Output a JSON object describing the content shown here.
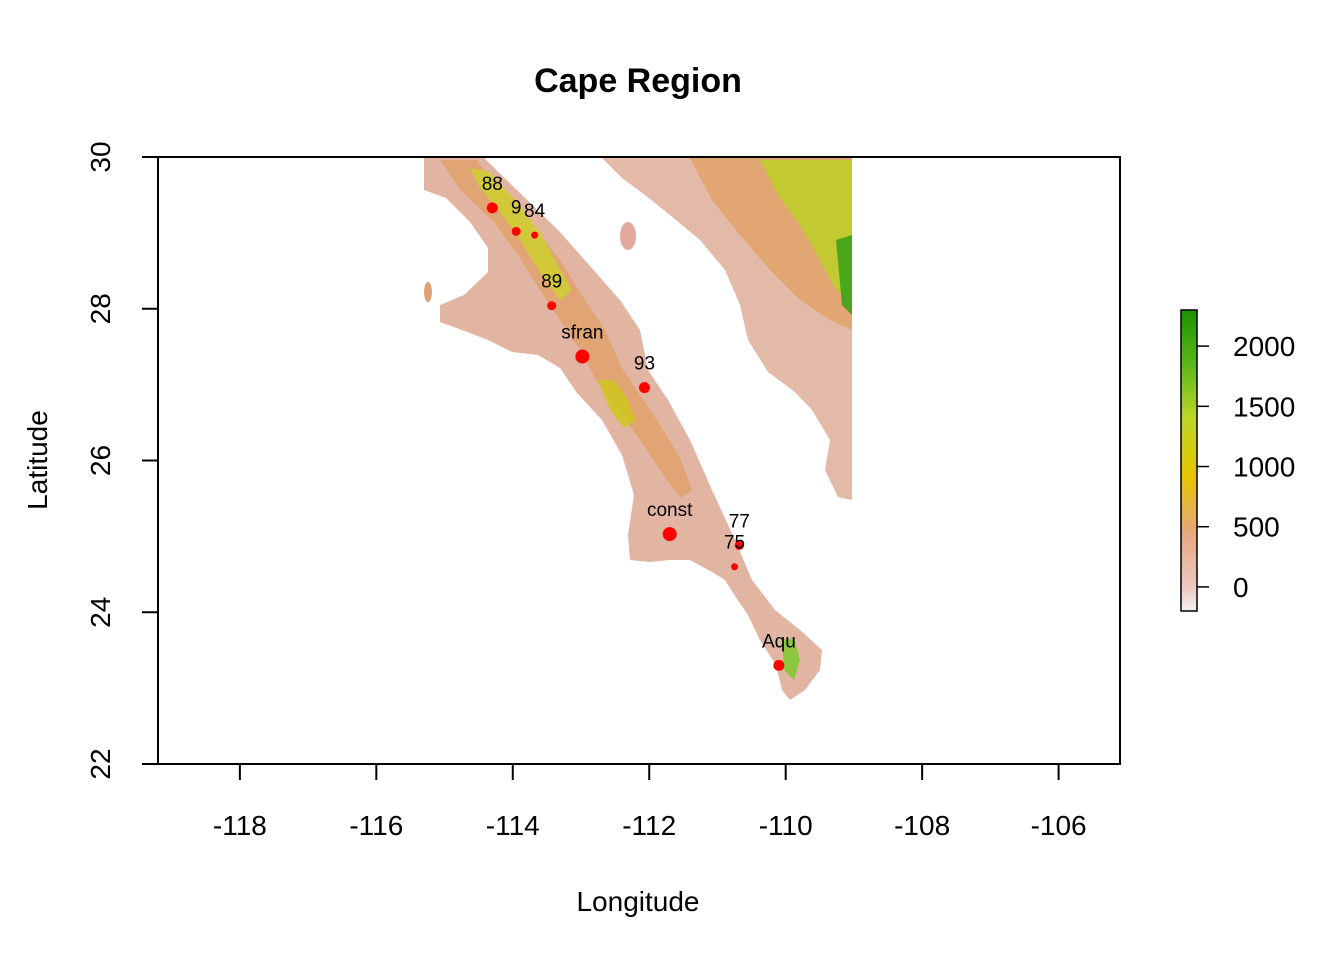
{
  "chart_data": {
    "type": "map",
    "title": "Cape Region",
    "xlabel": "Longitude",
    "ylabel": "Latitude",
    "xlim": [
      -119.2,
      -105.1
    ],
    "ylim": [
      22,
      30
    ],
    "x_ticks": [
      "-118",
      "-116",
      "-114",
      "-112",
      "-110",
      "-108",
      "-106"
    ],
    "y_ticks": [
      "22",
      "24",
      "26",
      "28",
      "30"
    ],
    "raster_extent_lon": [
      -115.3,
      -109.0
    ],
    "legend": {
      "range": [
        -200,
        2300
      ],
      "ticks": [
        "0",
        "500",
        "1000",
        "1500",
        "2000"
      ],
      "tick_values": [
        0,
        500,
        1000,
        1500,
        2000
      ],
      "colors": [
        "#f2f2f2",
        "#e6b6a4",
        "#e8a46a",
        "#e8c800",
        "#9fd020",
        "#1a9900"
      ]
    },
    "sites": [
      {
        "label": "88",
        "lon": -114.3,
        "lat": 29.33,
        "size": "medium"
      },
      {
        "label": "9",
        "lon": -113.95,
        "lat": 29.02,
        "size": "small"
      },
      {
        "label": "84",
        "lon": -113.68,
        "lat": 28.97,
        "size": "tiny"
      },
      {
        "label": "89",
        "lon": -113.43,
        "lat": 28.04,
        "size": "small"
      },
      {
        "label": "sfran",
        "lon": -112.98,
        "lat": 27.37,
        "size": "large"
      },
      {
        "label": "93",
        "lon": -112.07,
        "lat": 26.96,
        "size": "medium"
      },
      {
        "label": "const",
        "lon": -111.7,
        "lat": 25.03,
        "size": "large"
      },
      {
        "label": "77",
        "lon": -110.68,
        "lat": 24.88,
        "size": "small"
      },
      {
        "label": "75",
        "lon": -110.75,
        "lat": 24.6,
        "size": "tiny"
      },
      {
        "label": "Aqu",
        "lon": -110.1,
        "lat": 23.3,
        "size": "medium"
      }
    ]
  }
}
